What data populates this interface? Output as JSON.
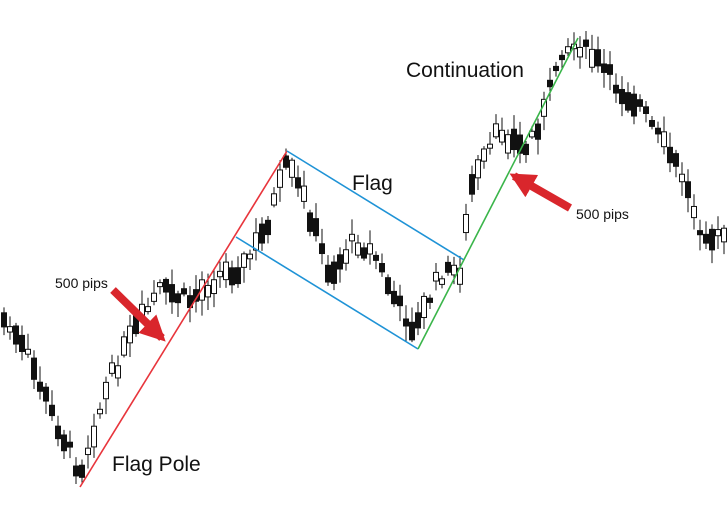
{
  "chart_data": {
    "type": "candlestick",
    "title": "",
    "xlabel": "",
    "ylabel": "",
    "grid": false,
    "legend": false,
    "annotations": {
      "flag_pole": "Flag Pole",
      "flag": "Flag",
      "continuation": "Continuation",
      "pips_left": "500 pips",
      "pips_right": "500 pips"
    },
    "colors": {
      "flag_pole_line": "#e8353c",
      "flag_channel": "#1f93d6",
      "continuation_line": "#3ab54a",
      "arrow": "#d9262c",
      "candle_bull_fill": "#ffffff",
      "candle_bear_fill": "#111111",
      "candle_outline": "#111111"
    }
  }
}
